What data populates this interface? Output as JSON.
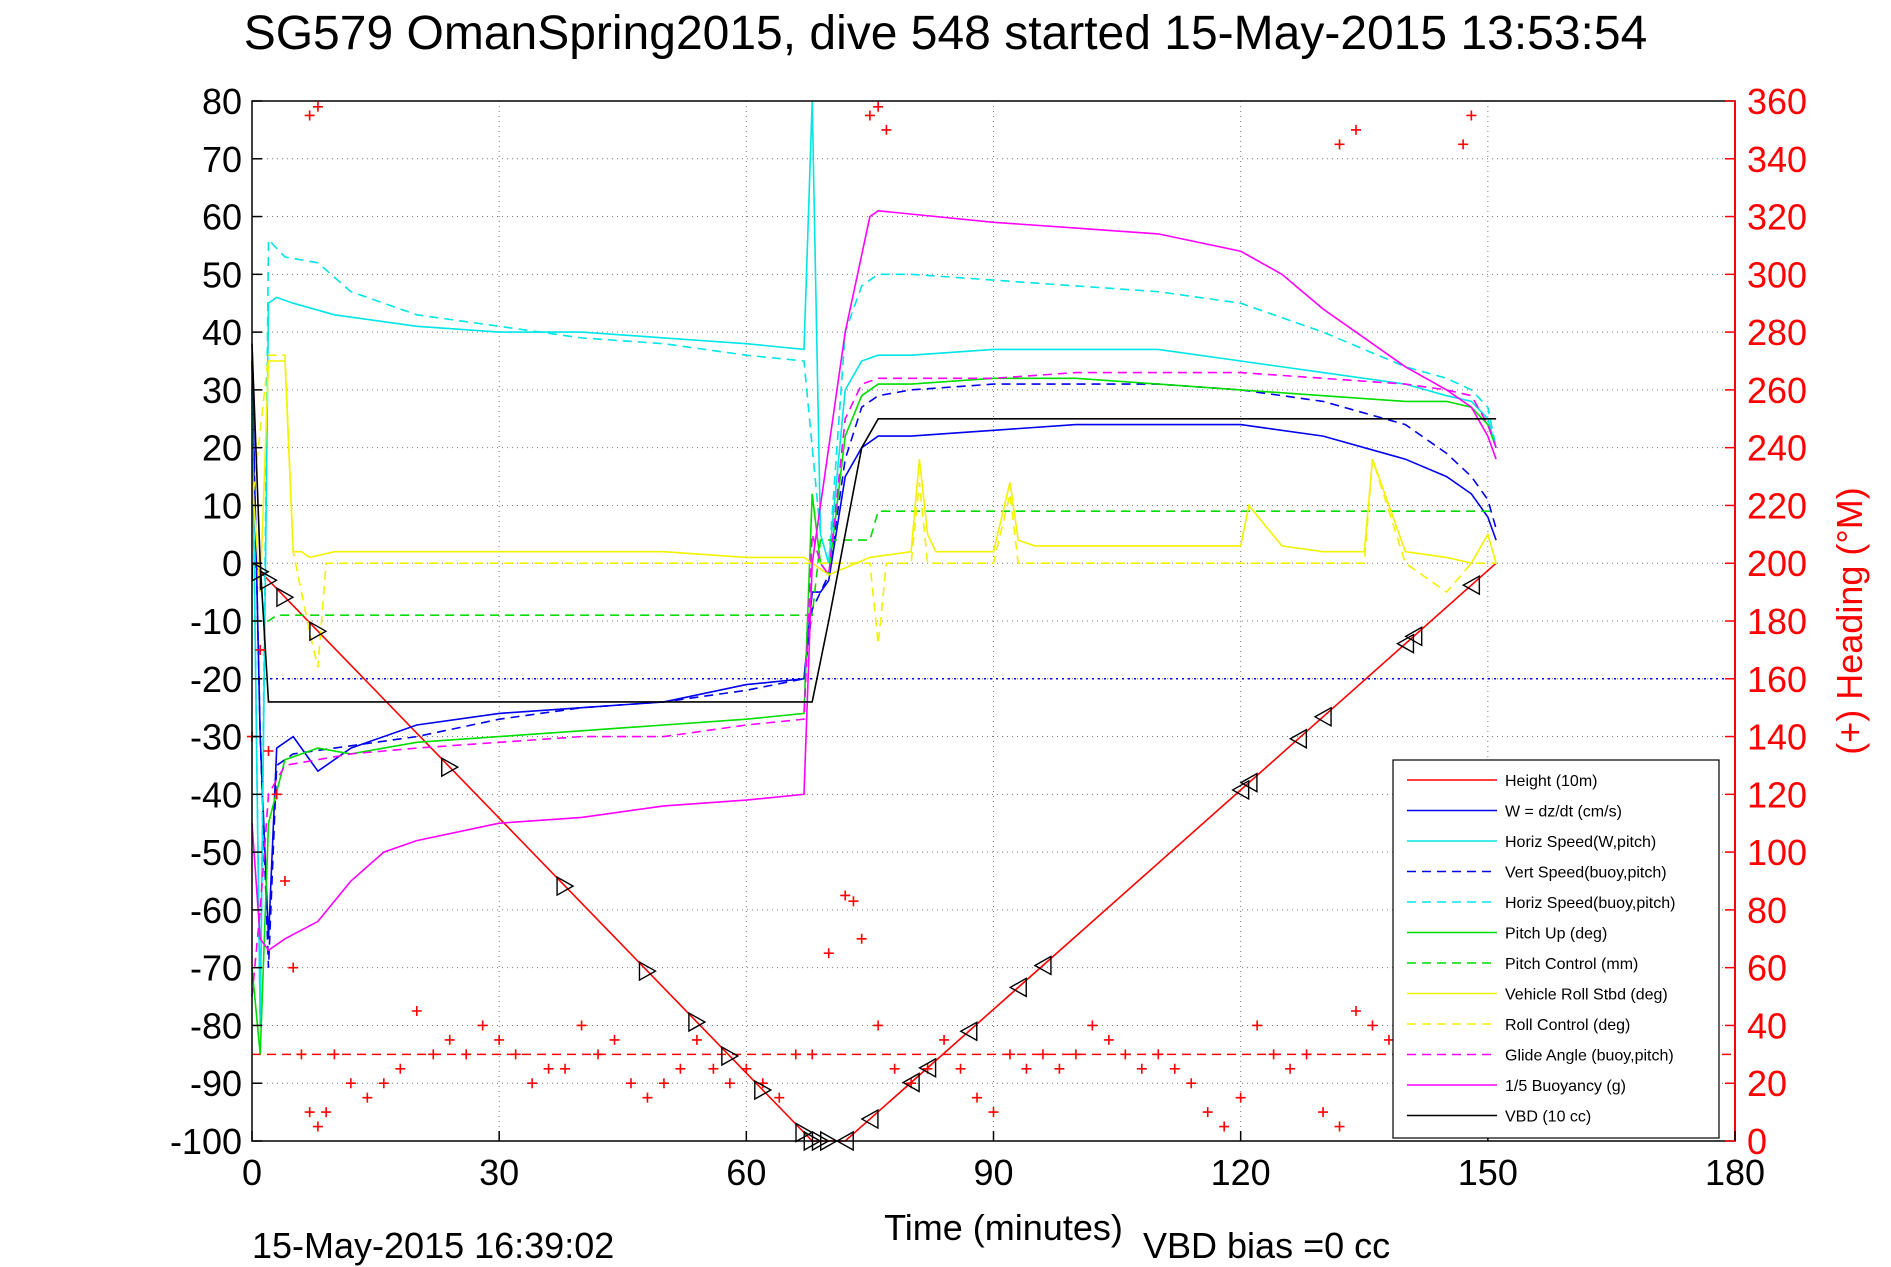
{
  "title": "SG579 OmanSpring2015, dive 548 started 15-May-2015 13:53:54",
  "footer": {
    "timestamp": "15-May-2015 16:39:02",
    "vbd_bias": "VBD bias =0 cc"
  },
  "chart_data": {
    "type": "line",
    "xlabel": "Time (minutes)",
    "ylabel": "",
    "ylabel_right": "(+) Heading (°M)",
    "xlim": [
      0,
      180
    ],
    "ylim": [
      -100,
      80
    ],
    "ylim_right": [
      0,
      360
    ],
    "xticks": [
      0,
      30,
      60,
      90,
      120,
      150,
      180
    ],
    "yticks": [
      -100,
      -90,
      -80,
      -70,
      -60,
      -50,
      -40,
      -30,
      -20,
      -10,
      0,
      10,
      20,
      30,
      40,
      50,
      60,
      70,
      80
    ],
    "yticks_right": [
      0,
      20,
      40,
      60,
      80,
      100,
      120,
      140,
      160,
      180,
      200,
      220,
      240,
      260,
      280,
      300,
      320,
      340,
      360
    ],
    "grid": true,
    "legend_position": "bottom-right",
    "colors": {
      "red": "#ff0000",
      "blue": "#0000ee",
      "cyan": "#00e5e5",
      "green": "#00dd00",
      "yellow": "#f2f200",
      "magenta": "#ff00ff",
      "black": "#000000"
    },
    "series": [
      {
        "name": "Height (10m)",
        "color": "red",
        "style": "solid",
        "x": [
          0,
          68,
          72,
          151
        ],
        "y": [
          0,
          -100,
          -100,
          0
        ]
      },
      {
        "name": "W = dz/dt (cm/s)",
        "color": "blue",
        "style": "solid",
        "x": [
          0,
          1,
          2,
          3,
          5,
          8,
          12,
          20,
          30,
          40,
          50,
          60,
          67,
          68,
          69,
          70,
          72,
          74,
          76,
          80,
          90,
          100,
          110,
          120,
          130,
          140,
          145,
          148,
          150,
          151
        ],
        "y": [
          35,
          -30,
          -65,
          -32,
          -30,
          -36,
          -32,
          -28,
          -26,
          -25,
          -24,
          -21,
          -20,
          -5,
          -5,
          -3,
          15,
          20,
          22,
          22,
          23,
          24,
          24,
          24,
          22,
          18,
          15,
          12,
          8,
          4
        ]
      },
      {
        "name": "Horiz Speed(W,pitch)",
        "color": "cyan",
        "style": "solid",
        "x": [
          0,
          1,
          2,
          3,
          5,
          10,
          20,
          30,
          40,
          50,
          60,
          67,
          68,
          69,
          70,
          72,
          74,
          76,
          80,
          90,
          100,
          110,
          120,
          130,
          140,
          145,
          148,
          150,
          151
        ],
        "y": [
          30,
          -80,
          45,
          46,
          45,
          43,
          41,
          40,
          40,
          39,
          38,
          37,
          80,
          5,
          0,
          30,
          35,
          36,
          36,
          37,
          37,
          37,
          35,
          33,
          31,
          29,
          28,
          25,
          20
        ]
      },
      {
        "name": "Vert Speed(buoy,pitch)",
        "color": "blue",
        "style": "dashed",
        "x": [
          0,
          1,
          2,
          3,
          5,
          10,
          20,
          30,
          40,
          50,
          60,
          67,
          68,
          69,
          70,
          72,
          74,
          76,
          80,
          90,
          100,
          110,
          120,
          130,
          140,
          145,
          148,
          150,
          151
        ],
        "y": [
          35,
          -30,
          -70,
          -35,
          -33,
          -32,
          -30,
          -27,
          -25,
          -24,
          -22,
          -20,
          -8,
          -5,
          -2,
          18,
          27,
          29,
          30,
          31,
          31,
          31,
          30,
          28,
          24,
          19,
          15,
          11,
          6
        ]
      },
      {
        "name": "Horiz Speed(buoy,pitch)",
        "color": "cyan",
        "style": "dashed",
        "x": [
          0,
          1,
          2,
          4,
          8,
          12,
          20,
          30,
          40,
          50,
          60,
          67,
          69,
          70,
          72,
          74,
          76,
          80,
          90,
          100,
          110,
          120,
          130,
          140,
          145,
          148,
          150,
          151
        ],
        "y": [
          30,
          -80,
          56,
          53,
          52,
          47,
          43,
          41,
          39,
          38,
          36,
          35,
          5,
          0,
          40,
          48,
          50,
          50,
          49,
          48,
          47,
          45,
          40,
          34,
          32,
          30,
          27,
          20
        ]
      },
      {
        "name": "Pitch Up (deg)",
        "color": "green",
        "style": "solid",
        "x": [
          0,
          1,
          2,
          4,
          8,
          12,
          20,
          30,
          40,
          50,
          60,
          67,
          68,
          69,
          70,
          72,
          74,
          76,
          80,
          90,
          100,
          110,
          120,
          130,
          140,
          145,
          148,
          150,
          151
        ],
        "y": [
          -70,
          -85,
          -45,
          -34,
          -32,
          -33,
          -31,
          -30,
          -29,
          -28,
          -27,
          -26,
          12,
          0,
          -2,
          22,
          29,
          31,
          31,
          32,
          32,
          31,
          30,
          29,
          28,
          28,
          27,
          24,
          20
        ]
      },
      {
        "name": "Pitch Control (mm)",
        "color": "green",
        "style": "dashed",
        "x": [
          0,
          2,
          3,
          68,
          69,
          75,
          76,
          151
        ],
        "y": [
          -10,
          -10,
          -9,
          -9,
          4,
          4,
          9,
          9
        ]
      },
      {
        "name": "Vehicle Roll Stbd (deg)",
        "color": "yellow",
        "style": "solid",
        "x": [
          0,
          1,
          2,
          4,
          5,
          6,
          7,
          10,
          20,
          30,
          40,
          50,
          60,
          67,
          70,
          75,
          80,
          81,
          82,
          83,
          90,
          92,
          93,
          95,
          100,
          110,
          120,
          121,
          125,
          130,
          135,
          136,
          140,
          145,
          148,
          150,
          151
        ],
        "y": [
          15,
          -5,
          35,
          35,
          2,
          2,
          1,
          2,
          2,
          2,
          2,
          2,
          1,
          1,
          -2,
          1,
          2,
          18,
          5,
          2,
          2,
          14,
          4,
          3,
          3,
          3,
          3,
          10,
          3,
          2,
          2,
          18,
          2,
          1,
          0,
          5,
          0
        ]
      },
      {
        "name": "Roll Control (deg)",
        "color": "yellow",
        "style": "dashed",
        "x": [
          0,
          2,
          4,
          5,
          7,
          8,
          9,
          10,
          20,
          30,
          40,
          50,
          60,
          67,
          70,
          75,
          76,
          77,
          80,
          81,
          82,
          83,
          85,
          90,
          92,
          93,
          95,
          100,
          110,
          120,
          130,
          135,
          136,
          140,
          145,
          148,
          151
        ],
        "y": [
          10,
          36,
          36,
          2,
          -12,
          -18,
          0,
          0,
          0,
          0,
          0,
          0,
          0,
          0,
          0,
          0,
          -14,
          0,
          0,
          14,
          0,
          0,
          0,
          0,
          12,
          0,
          0,
          0,
          0,
          0,
          0,
          0,
          18,
          0,
          -5,
          0,
          0
        ]
      },
      {
        "name": "Glide Angle (buoy,pitch)",
        "color": "magenta",
        "style": "dashed",
        "x": [
          0,
          1,
          2,
          4,
          8,
          12,
          20,
          30,
          40,
          50,
          60,
          67,
          68,
          69,
          70,
          72,
          74,
          76,
          80,
          90,
          100,
          110,
          120,
          130,
          140,
          145,
          148,
          150,
          151
        ],
        "y": [
          -75,
          -60,
          -40,
          -35,
          -34,
          -33,
          -32,
          -31,
          -30,
          -30,
          -28,
          -27,
          5,
          0,
          -2,
          25,
          31,
          32,
          32,
          32,
          33,
          33,
          33,
          32,
          31,
          30,
          29,
          24,
          20
        ]
      },
      {
        "name": "1/5 Buoyancy (g)",
        "color": "magenta",
        "style": "solid",
        "x": [
          0,
          1,
          2,
          4,
          8,
          12,
          16,
          20,
          30,
          40,
          50,
          60,
          67,
          68,
          70,
          72,
          75,
          76,
          90,
          100,
          110,
          120,
          125,
          130,
          140,
          145,
          148,
          150,
          151
        ],
        "y": [
          -45,
          -65,
          -67,
          -65,
          -62,
          -55,
          -50,
          -48,
          -45,
          -44,
          -42,
          -41,
          -40,
          0,
          20,
          40,
          60,
          61,
          59,
          58,
          57,
          54,
          50,
          44,
          34,
          30,
          27,
          22,
          18
        ]
      },
      {
        "name": "VBD (10 cc)",
        "color": "black",
        "style": "solid",
        "x": [
          0,
          1,
          2,
          68,
          70,
          72,
          74,
          76,
          100,
          120,
          140,
          150,
          151
        ],
        "y": [
          38,
          0,
          -24,
          -24,
          -10,
          5,
          20,
          25,
          25,
          25,
          25,
          25,
          25
        ]
      }
    ],
    "reference_lines": [
      {
        "axis": "right",
        "value": 30,
        "color": "red",
        "style": "dashed"
      },
      {
        "axis": "left",
        "value": -20,
        "color": "blue",
        "style": "dotted"
      }
    ],
    "heading_series": {
      "marker": "+",
      "color": "red",
      "axis": "right",
      "x": [
        0,
        1,
        2,
        3,
        4,
        5,
        6,
        7,
        8,
        9,
        10,
        12,
        14,
        16,
        18,
        20,
        22,
        24,
        26,
        28,
        30,
        32,
        34,
        36,
        38,
        40,
        42,
        44,
        46,
        48,
        50,
        52,
        54,
        56,
        58,
        60,
        62,
        64,
        66,
        68,
        70,
        72,
        73,
        74,
        76,
        78,
        80,
        82,
        84,
        86,
        88,
        90,
        92,
        94,
        96,
        98,
        100,
        102,
        104,
        106,
        108,
        110,
        112,
        114,
        116,
        118,
        120,
        122,
        124,
        126,
        128,
        130,
        132,
        134,
        136,
        138,
        140,
        142,
        144,
        146,
        148,
        150,
        151,
        7,
        8,
        75,
        76,
        77,
        132,
        134,
        147,
        148
      ],
      "y": [
        140,
        170,
        135,
        120,
        90,
        60,
        30,
        10,
        5,
        10,
        30,
        20,
        15,
        20,
        25,
        45,
        30,
        35,
        30,
        40,
        35,
        30,
        20,
        25,
        25,
        40,
        30,
        35,
        20,
        15,
        20,
        25,
        35,
        25,
        20,
        25,
        20,
        15,
        30,
        30,
        65,
        85,
        83,
        70,
        40,
        25,
        20,
        25,
        35,
        25,
        15,
        10,
        30,
        25,
        30,
        25,
        30,
        40,
        35,
        30,
        25,
        30,
        25,
        20,
        10,
        5,
        15,
        40,
        30,
        25,
        30,
        10,
        5,
        45,
        40,
        35,
        30,
        25,
        20,
        15,
        20,
        25,
        30,
        355,
        358,
        355,
        358,
        350,
        345,
        350,
        345,
        355
      ]
    },
    "waypoint_markers": {
      "marker": "triangle",
      "color": "black",
      "left_x": [
        1,
        2,
        4,
        8,
        24,
        38,
        48,
        54,
        58,
        62,
        67,
        68,
        69,
        70
      ],
      "right_x": [
        72,
        75,
        80,
        82,
        87,
        93,
        96,
        120,
        121,
        127,
        130,
        140,
        141,
        148
      ]
    }
  }
}
